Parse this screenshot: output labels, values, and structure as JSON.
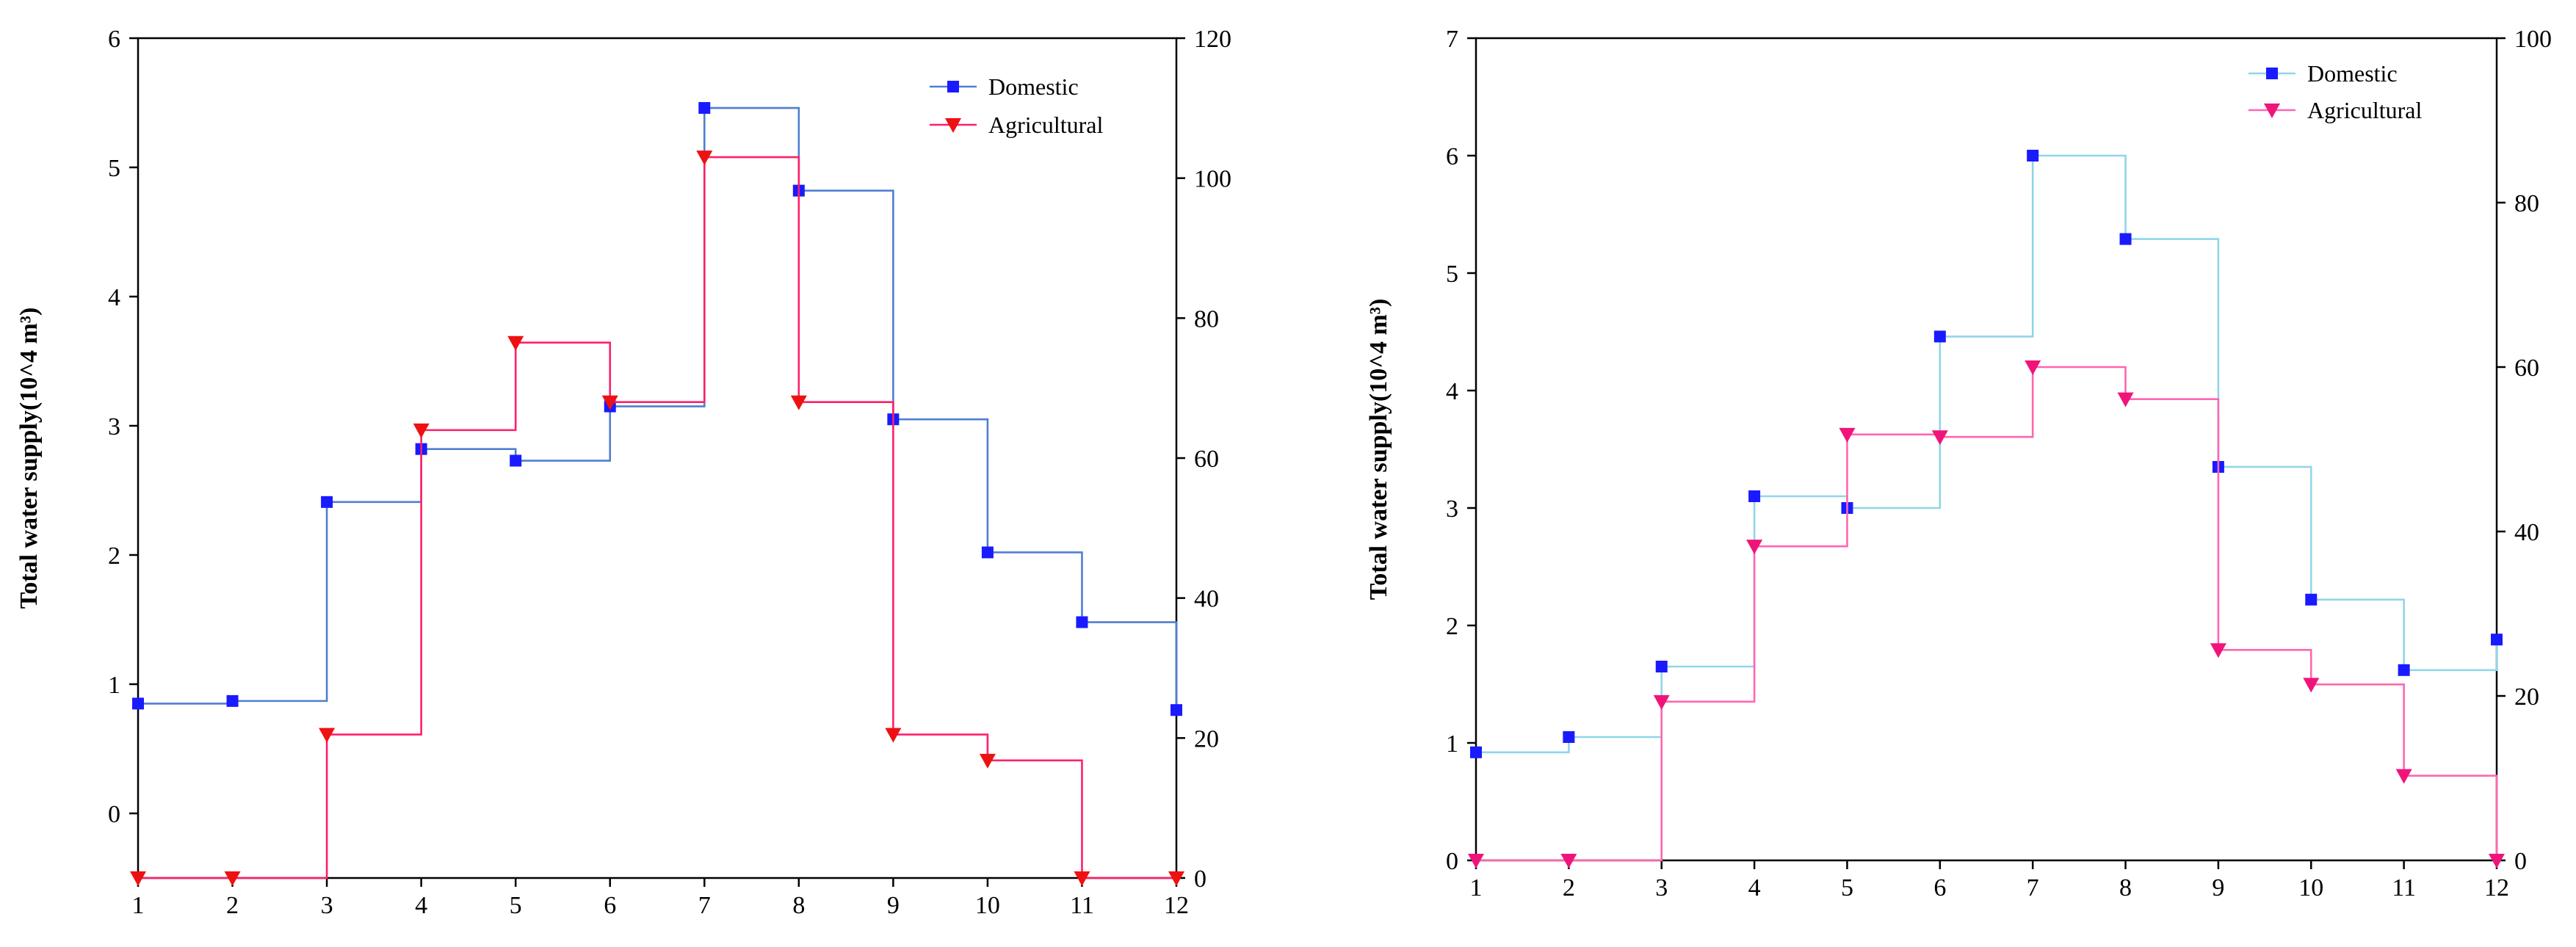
{
  "chart_data": [
    {
      "type": "line",
      "step": "post",
      "title": "",
      "ylabel": "Total water supply(10^4 m³)",
      "y2label": "",
      "xlim": [
        1,
        12
      ],
      "ylim": [
        -0.5,
        6
      ],
      "y2lim": [
        0,
        120
      ],
      "x_ticks": [
        "1",
        "2",
        "3",
        "4",
        "5",
        "6",
        "7",
        "8",
        "9",
        "10",
        "11",
        "12"
      ],
      "y_ticks": [
        "0",
        "1",
        "2",
        "3",
        "4",
        "5",
        "6"
      ],
      "y2_ticks": [
        "0",
        "20",
        "40",
        "60",
        "80",
        "100",
        "120"
      ],
      "legend_position": "top-right",
      "x": [
        1,
        2,
        3,
        4,
        5,
        6,
        7,
        8,
        9,
        10,
        11,
        12
      ],
      "series": [
        {
          "name": "Domestic",
          "axis": "left",
          "color": "#1a1aff",
          "line_color": "#4f7fd1",
          "marker": "square",
          "values": [
            0.85,
            0.87,
            2.41,
            2.82,
            2.73,
            3.15,
            5.46,
            4.82,
            3.05,
            2.02,
            1.48,
            0.8
          ]
        },
        {
          "name": "Agricultural",
          "axis": "right",
          "color": "#ee1111",
          "line_color": "#ff1f6a",
          "marker": "triangle-down",
          "values": [
            0,
            0,
            20.5,
            64,
            76.5,
            68,
            103,
            68,
            20.5,
            16.8,
            0,
            0
          ]
        }
      ]
    },
    {
      "type": "line",
      "step": "post",
      "title": "",
      "ylabel": "Total water supply(10^4 m³)",
      "y2label": "",
      "xlim": [
        1,
        12
      ],
      "ylim": [
        0,
        7
      ],
      "y2lim": [
        0,
        100
      ],
      "x_ticks": [
        "1",
        "2",
        "3",
        "4",
        "5",
        "6",
        "7",
        "8",
        "9",
        "10",
        "11",
        "12"
      ],
      "y_ticks": [
        "0",
        "1",
        "2",
        "3",
        "4",
        "5",
        "6",
        "7"
      ],
      "y2_ticks": [
        "0",
        "20",
        "40",
        "60",
        "80",
        "100"
      ],
      "legend_position": "top-right",
      "x": [
        1,
        2,
        3,
        4,
        5,
        6,
        7,
        8,
        9,
        10,
        11,
        12
      ],
      "series": [
        {
          "name": "Domestic",
          "axis": "left",
          "color": "#1a1aff",
          "line_color": "#8fd6ea",
          "marker": "square",
          "values": [
            0.92,
            1.05,
            1.65,
            3.1,
            3.0,
            4.46,
            6.0,
            5.29,
            3.35,
            2.22,
            1.62,
            1.88
          ]
        },
        {
          "name": "Agricultural",
          "axis": "right",
          "color": "#f0147a",
          "line_color": "#ff66b0",
          "marker": "triangle-down",
          "values": [
            0,
            0,
            19.3,
            38.2,
            51.8,
            51.5,
            60,
            56.1,
            25.6,
            21.4,
            10.3,
            0
          ]
        }
      ]
    }
  ]
}
